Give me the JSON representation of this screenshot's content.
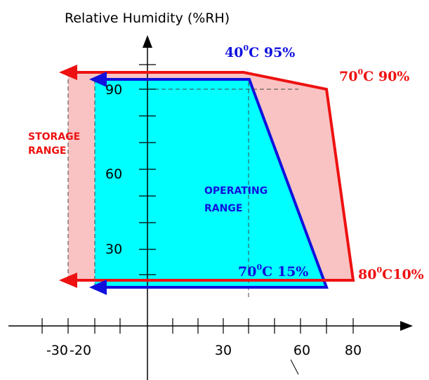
{
  "diagram": {
    "y_axis_title": "Relative Humidity (%RH)",
    "x_ticks": [
      "-30",
      "-20",
      "30",
      "60",
      "80"
    ],
    "y_ticks": [
      "90",
      "60",
      "30"
    ],
    "storage_label": [
      "STORAGE",
      "RANGE"
    ],
    "operating_label": [
      "OPERATING",
      "RANGE"
    ],
    "corners": {
      "op_top": {
        "pre": "40",
        "sup": "0",
        "post": "C 95%"
      },
      "st_top": {
        "pre": "70",
        "sup": "0",
        "post": "C 90%"
      },
      "op_bottom": {
        "pre": "70",
        "sup": "0",
        "post": "C 15%"
      },
      "st_bottom": {
        "pre": "80",
        "sup": "0",
        "post": "C10%"
      }
    },
    "colors": {
      "storage_fill": "#f9c3c3",
      "storage_edge": "#ee1111",
      "operating_fill": "#00ffff",
      "operating_edge": "#1111dd"
    }
  }
}
